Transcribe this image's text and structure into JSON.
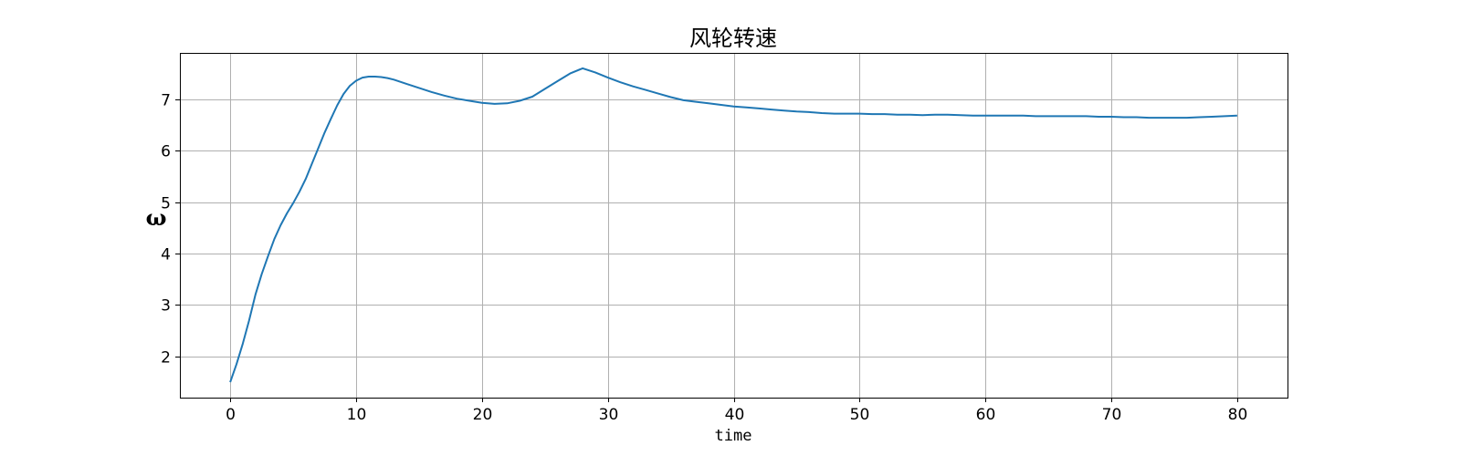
{
  "chart_data": {
    "type": "line",
    "title": "风轮转速",
    "xlabel": "time",
    "ylabel": "ω",
    "xlim": [
      -4,
      84
    ],
    "ylim": [
      1.2,
      7.9
    ],
    "xticks": [
      0,
      10,
      20,
      30,
      40,
      50,
      60,
      70,
      80
    ],
    "yticks": [
      2,
      3,
      4,
      5,
      6,
      7
    ],
    "grid": true,
    "colors": {
      "line": "#1f77b4"
    },
    "series": [
      {
        "x": [
          0,
          0.5,
          1,
          1.5,
          2,
          2.5,
          3,
          3.5,
          4,
          4.5,
          5,
          5.5,
          6,
          6.5,
          7,
          7.5,
          8,
          8.5,
          9,
          9.5,
          10,
          10.5,
          11,
          11.5,
          12,
          12.5,
          13,
          14,
          15,
          16,
          17,
          18,
          19,
          20,
          21,
          22,
          23,
          24,
          25,
          26,
          27,
          28,
          29,
          30,
          31,
          32,
          33,
          34,
          35,
          36,
          37,
          38,
          39,
          40,
          41,
          42,
          43,
          44,
          45,
          46,
          47,
          48,
          49,
          50,
          51,
          52,
          53,
          54,
          55,
          56,
          57,
          58,
          59,
          60,
          61,
          62,
          63,
          64,
          65,
          66,
          67,
          68,
          69,
          70,
          71,
          72,
          73,
          74,
          75,
          76,
          77,
          78,
          79,
          80
        ],
        "values": [
          1.5,
          1.85,
          2.25,
          2.7,
          3.2,
          3.6,
          3.95,
          4.28,
          4.55,
          4.78,
          4.98,
          5.2,
          5.45,
          5.75,
          6.05,
          6.35,
          6.62,
          6.88,
          7.1,
          7.26,
          7.36,
          7.42,
          7.44,
          7.44,
          7.43,
          7.41,
          7.38,
          7.3,
          7.22,
          7.14,
          7.07,
          7.01,
          6.97,
          6.93,
          6.91,
          6.92,
          6.97,
          7.05,
          7.2,
          7.35,
          7.5,
          7.6,
          7.52,
          7.42,
          7.33,
          7.25,
          7.18,
          7.11,
          7.04,
          6.98,
          6.95,
          6.92,
          6.89,
          6.86,
          6.84,
          6.82,
          6.8,
          6.78,
          6.76,
          6.75,
          6.73,
          6.72,
          6.72,
          6.72,
          6.71,
          6.71,
          6.7,
          6.7,
          6.69,
          6.7,
          6.7,
          6.69,
          6.68,
          6.68,
          6.68,
          6.68,
          6.68,
          6.67,
          6.67,
          6.67,
          6.67,
          6.67,
          6.66,
          6.66,
          6.65,
          6.65,
          6.64,
          6.64,
          6.64,
          6.64,
          6.65,
          6.66,
          6.67,
          6.68
        ]
      }
    ]
  }
}
